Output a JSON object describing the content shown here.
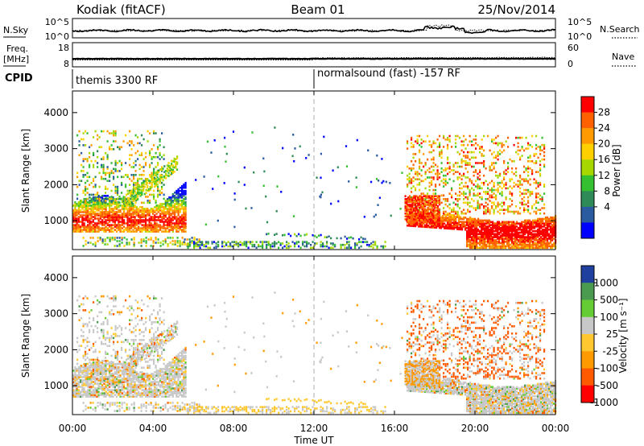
{
  "header": {
    "station": "Kodiak (fitACF)",
    "beam": "Beam 01",
    "date": "25/Nov/2014"
  },
  "strips": {
    "nsky_label": "N.Sky",
    "nsearch_label": "N.Search",
    "nsky_ticks": [
      "10^5",
      "10^0"
    ],
    "nsearch_ticks": [
      "10^5",
      "10^0"
    ],
    "freq_label_line1": "Freq.",
    "freq_label_line2": "[MHz]",
    "freq_ticks": [
      "18",
      "8"
    ],
    "nave_label": "Nave",
    "nave_ticks": [
      "60",
      "0"
    ],
    "cpid_label": "CPID",
    "cpid_segments": [
      {
        "label": "themis 3300 RF",
        "start_hour": 0
      },
      {
        "label": "normalsound (fast) -157 RF",
        "start_hour": 12
      }
    ]
  },
  "chart_data": [
    {
      "type": "heatmap",
      "name": "power",
      "ylabel": "Slant Range [km]",
      "y_ticks": [
        "1000",
        "2000",
        "3000",
        "4000"
      ],
      "ylim": [
        200,
        4600
      ],
      "colorbar": {
        "label": "Power [dB]",
        "ticks": [
          "28",
          "24",
          "20",
          "16",
          "12",
          "8",
          "4"
        ],
        "colors": [
          "#ff0000",
          "#ff6000",
          "#ff9a00",
          "#ffd000",
          "#a6d800",
          "#34c030",
          "#2e8b57",
          "#2a5aa0",
          "#0000ff"
        ]
      }
    },
    {
      "type": "heatmap",
      "name": "velocity",
      "ylabel": "Slant Range [km]",
      "y_ticks": [
        "1000",
        "2000",
        "3000",
        "4000"
      ],
      "ylim": [
        200,
        4600
      ],
      "colorbar": {
        "label": "Velocity [m s⁻¹]",
        "ticks": [
          "1000",
          "500",
          "100",
          "25",
          "-25",
          "-100",
          "-500",
          "-1000"
        ],
        "colors": [
          "#2040a0",
          "#4a9a50",
          "#66cc33",
          "#c8c8c8",
          "#ffc830",
          "#ff9a00",
          "#ff5a00",
          "#ff0000"
        ]
      }
    }
  ],
  "x_axis": {
    "label": "Time UT",
    "ticks": [
      "00:00",
      "04:00",
      "08:00",
      "12:00",
      "16:00",
      "20:00",
      "00:00"
    ]
  }
}
